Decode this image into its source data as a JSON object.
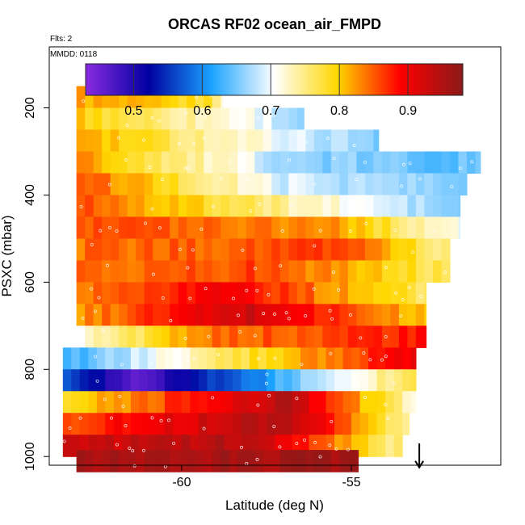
{
  "chart_data": {
    "type": "heatmap",
    "title": "ORCAS RF02 ocean_air_FMPD",
    "subtitle": "Flts: 2",
    "annotation": "MMDD: 0118",
    "xlabel": "Latitude (deg N)",
    "ylabel": "PSXC (mbar)",
    "xlim": [
      -63.9,
      -50.6
    ],
    "ylim": [
      1020,
      60
    ],
    "x_ticks": [
      -60,
      -55
    ],
    "x_tick_labels": [
      "-60",
      "-55"
    ],
    "y_ticks": [
      200,
      400,
      600,
      800,
      1000
    ],
    "y_tick_labels": [
      "200",
      "400",
      "600",
      "800",
      "1000"
    ],
    "colorbar": {
      "range": [
        0.43,
        0.98
      ],
      "ticks": [
        0.5,
        0.6,
        0.7,
        0.8,
        0.9
      ],
      "tick_labels": [
        "0.5",
        "0.6",
        "0.7",
        "0.8",
        "0.9"
      ],
      "colors": [
        "#8a2be2",
        "#0000a0",
        "#1aa3ff",
        "#ffffff",
        "#ffd700",
        "#ff0000",
        "#8b1a1a"
      ]
    },
    "x_bin_width_deg": 0.25,
    "y_bin_height_mbar": 50,
    "bands": [
      {
        "p": 175,
        "lat_start": -63.1,
        "lat_end": -58.8,
        "mid": -59.2,
        "v_start": 0.82,
        "v_mid": 0.78,
        "v_end": 0.74
      },
      {
        "p": 225,
        "lat_start": -63.1,
        "lat_end": -56.4,
        "mid": -57.6,
        "v_start": 0.8,
        "v_mid": 0.7,
        "v_end": 0.66
      },
      {
        "p": 275,
        "lat_start": -63.1,
        "lat_end": -54.2,
        "mid": -56.0,
        "v_start": 0.82,
        "v_mid": 0.68,
        "v_end": 0.66
      },
      {
        "p": 325,
        "lat_start": -63.1,
        "lat_end": -51.2,
        "mid": -56.5,
        "v_start": 0.83,
        "v_mid": 0.66,
        "v_end": 0.64
      },
      {
        "p": 375,
        "lat_start": -63.1,
        "lat_end": -51.6,
        "mid": -57.0,
        "v_start": 0.86,
        "v_mid": 0.69,
        "v_end": 0.65
      },
      {
        "p": 425,
        "lat_start": -63.1,
        "lat_end": -51.8,
        "mid": -58.0,
        "v_start": 0.86,
        "v_mid": 0.76,
        "v_end": 0.65
      },
      {
        "p": 475,
        "lat_start": -63.1,
        "lat_end": -51.8,
        "mid": -55.5,
        "v_start": 0.86,
        "v_mid": 0.83,
        "v_end": 0.7
      },
      {
        "p": 525,
        "lat_start": -63.1,
        "lat_end": -52.1,
        "mid": -55.0,
        "v_start": 0.84,
        "v_mid": 0.86,
        "v_end": 0.74
      },
      {
        "p": 575,
        "lat_start": -63.1,
        "lat_end": -52.1,
        "mid": -57.5,
        "v_start": 0.84,
        "v_mid": 0.86,
        "v_end": 0.76
      },
      {
        "p": 625,
        "lat_start": -63.1,
        "lat_end": -52.8,
        "mid": -58.5,
        "v_start": 0.84,
        "v_mid": 0.9,
        "v_end": 0.76
      },
      {
        "p": 675,
        "lat_start": -63.1,
        "lat_end": -52.8,
        "mid": -58.0,
        "v_start": 0.82,
        "v_mid": 0.93,
        "v_end": 0.8
      },
      {
        "p": 725,
        "lat_start": -63.1,
        "lat_end": -52.8,
        "mid": -59.0,
        "v_start": 0.71,
        "v_mid": 0.84,
        "v_end": 0.88
      },
      {
        "p": 775,
        "lat_start": -63.5,
        "lat_end": -53.1,
        "mid": -58.0,
        "v_start": 0.62,
        "v_mid": 0.78,
        "v_end": 0.9
      },
      {
        "p": 825,
        "lat_start": -63.5,
        "lat_end": -53.1,
        "mid": -61.5,
        "v_start": 0.58,
        "v_mid": 0.46,
        "v_end": 0.78
      },
      {
        "p": 875,
        "lat_start": -63.5,
        "lat_end": -53.1,
        "mid": -57.0,
        "v_start": 0.78,
        "v_mid": 0.95,
        "v_end": 0.72
      },
      {
        "p": 925,
        "lat_start": -63.5,
        "lat_end": -53.3,
        "mid": -57.0,
        "v_start": 0.86,
        "v_mid": 0.96,
        "v_end": 0.74
      },
      {
        "p": 975,
        "lat_start": -63.5,
        "lat_end": -53.5,
        "mid": -58.0,
        "v_start": 0.92,
        "v_mid": 0.95,
        "v_end": 0.74
      },
      {
        "p": 1010,
        "lat_start": -63.1,
        "lat_end": -54.8,
        "mid": -58.0,
        "v_start": 0.96,
        "v_mid": 0.96,
        "v_end": 0.96
      }
    ],
    "arrow": {
      "lat": -53.0,
      "p_top": 970,
      "p_bottom": 1025,
      "direction": "down"
    }
  }
}
